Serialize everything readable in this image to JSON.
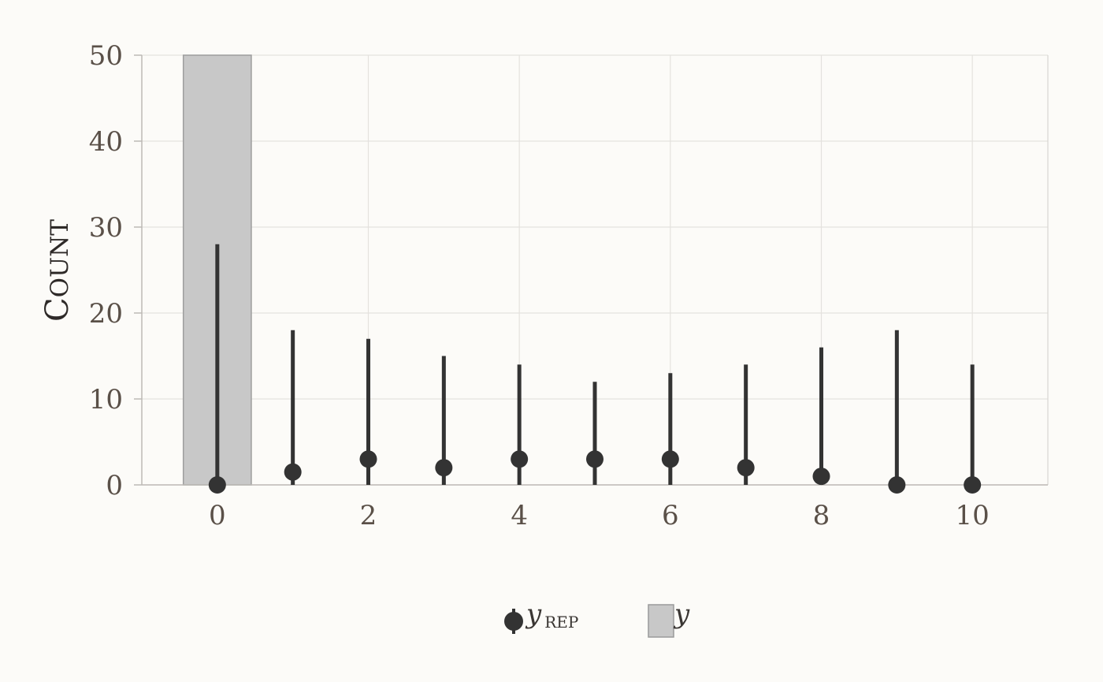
{
  "chart_data": {
    "type": "bar",
    "ylabel": "Count",
    "xlabel": "",
    "xlim": [
      -1,
      11
    ],
    "ylim": [
      0,
      50
    ],
    "x_ticks": [
      "0",
      "2",
      "4",
      "6",
      "8",
      "10"
    ],
    "y_ticks": [
      "0",
      "10",
      "20",
      "30",
      "40",
      "50"
    ],
    "grid": true,
    "legend_position": "bottom",
    "observed": {
      "name": "y",
      "x": [
        0
      ],
      "values": [
        50
      ],
      "color": "#c8c8c8"
    },
    "replicated": {
      "name": "y_rep",
      "x": [
        0,
        1,
        2,
        3,
        4,
        5,
        6,
        7,
        8,
        9,
        10
      ],
      "median": [
        0,
        1.5,
        3,
        2,
        3,
        3,
        3,
        2,
        1,
        0,
        0
      ],
      "lower": [
        0,
        0,
        0,
        0,
        0,
        0,
        0,
        0,
        0,
        0,
        0
      ],
      "upper": [
        28,
        18,
        17,
        15,
        14,
        12,
        13,
        14,
        16,
        18,
        14
      ],
      "color": "#333333"
    }
  },
  "legend": {
    "rep_label_main": "y",
    "rep_label_sub": "REP",
    "obs_label": "y"
  }
}
